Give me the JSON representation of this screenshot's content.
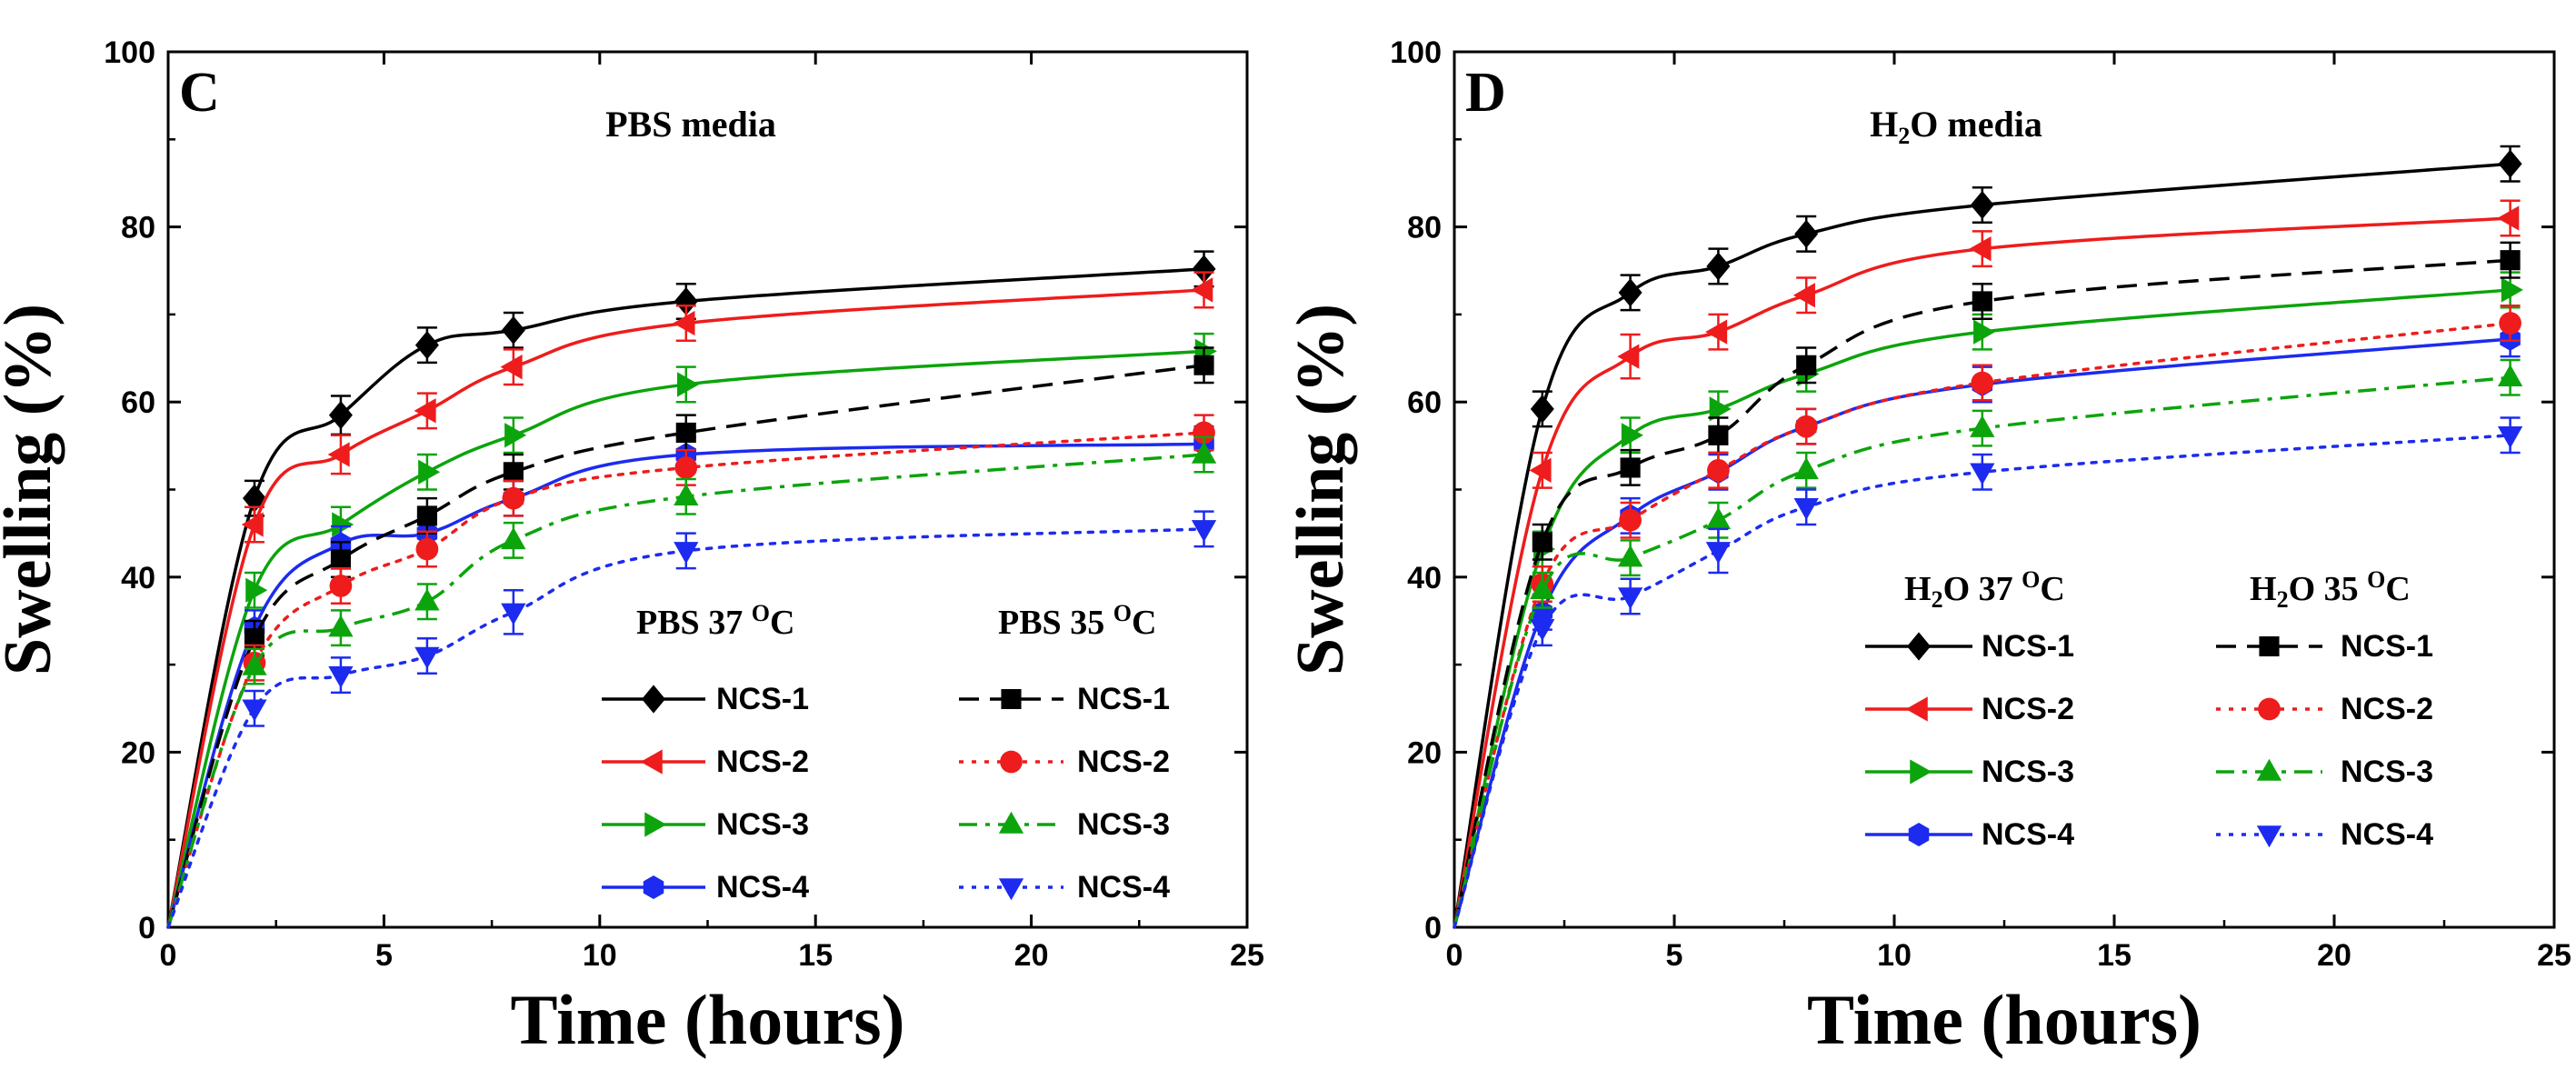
{
  "chart_data": [
    {
      "type": "line",
      "panel_label": "C",
      "title": "PBS media",
      "xlabel": "Time (hours)",
      "ylabel": "Swelling (%)",
      "xlim": [
        0,
        25
      ],
      "ylim": [
        0,
        100
      ],
      "x_ticks": [
        "0",
        "5",
        "10",
        "15",
        "20",
        "25"
      ],
      "y_ticks": [
        "0",
        "20",
        "40",
        "60",
        "80",
        "100"
      ],
      "x": [
        0,
        2,
        4,
        6,
        8,
        12,
        24
      ],
      "legend_groups": [
        {
          "heading": "PBS 37 °C",
          "heading_parts": [
            "PBS 37 ",
            "O",
            "C"
          ]
        },
        {
          "heading": "PBS 35 °C",
          "heading_parts": [
            "PBS 35 ",
            "O",
            "C"
          ]
        }
      ],
      "series": [
        {
          "name": "NCS-1",
          "group": 0,
          "color": "#000000",
          "marker": "diamond",
          "dash": "solid",
          "values": [
            0,
            49,
            58.5,
            66.5,
            68.2,
            71.5,
            75.2
          ],
          "errors": [
            0,
            2,
            2.2,
            2,
            2,
            2,
            2
          ]
        },
        {
          "name": "NCS-2",
          "group": 0,
          "color": "#ee1c1c",
          "marker": "triangle-left",
          "dash": "solid",
          "values": [
            0,
            46,
            54,
            59,
            64,
            69,
            72.8
          ],
          "errors": [
            0,
            2,
            2.2,
            2,
            2,
            2,
            2
          ]
        },
        {
          "name": "NCS-3",
          "group": 0,
          "color": "#0ca40c",
          "marker": "triangle-right",
          "dash": "solid",
          "values": [
            0,
            38.5,
            46,
            52,
            56.2,
            62,
            65.8
          ],
          "errors": [
            0,
            2,
            2,
            2,
            2,
            2,
            2
          ]
        },
        {
          "name": "NCS-4",
          "group": 0,
          "color": "#1c2bef",
          "marker": "hexagon",
          "dash": "solid",
          "values": [
            0,
            34.2,
            43.8,
            45,
            49,
            54,
            55.2
          ],
          "errors": [
            0,
            2,
            2,
            2,
            2,
            2,
            2
          ]
        },
        {
          "name": "NCS-1",
          "group": 1,
          "color": "#000000",
          "marker": "square",
          "dash": "dash",
          "values": [
            0,
            33,
            42,
            47,
            52,
            56.5,
            64.2
          ],
          "errors": [
            0,
            2,
            2,
            2,
            2,
            2,
            2
          ]
        },
        {
          "name": "NCS-2",
          "group": 1,
          "color": "#ee1c1c",
          "marker": "circle",
          "dash": "dot",
          "values": [
            0,
            30.2,
            39,
            43.2,
            49,
            52.5,
            56.5
          ],
          "errors": [
            0,
            2,
            2,
            2,
            2,
            2,
            2
          ]
        },
        {
          "name": "NCS-3",
          "group": 1,
          "color": "#0ca40c",
          "marker": "triangle-up",
          "dash": "dashdot",
          "values": [
            0,
            29.8,
            34.2,
            37.2,
            44.2,
            49.2,
            54
          ],
          "errors": [
            0,
            2,
            2,
            2,
            2,
            2,
            2
          ]
        },
        {
          "name": "NCS-4",
          "group": 1,
          "color": "#1c2bef",
          "marker": "triangle-down",
          "dash": "dot",
          "values": [
            0,
            25,
            28.8,
            31,
            36,
            43,
            45.5
          ],
          "errors": [
            0,
            2,
            2,
            2,
            2.5,
            2,
            2
          ]
        }
      ]
    },
    {
      "type": "line",
      "panel_label": "D",
      "title": "H2O media",
      "title_parts": [
        "H",
        "2",
        "O media"
      ],
      "xlabel": "Time (hours)",
      "ylabel": "Swelling (%)",
      "xlim": [
        0,
        25
      ],
      "ylim": [
        0,
        100
      ],
      "x_ticks": [
        "0",
        "5",
        "10",
        "15",
        "20",
        "25"
      ],
      "y_ticks": [
        "0",
        "20",
        "40",
        "60",
        "80",
        "100"
      ],
      "x": [
        0,
        2,
        4,
        6,
        8,
        12,
        24
      ],
      "legend_groups": [
        {
          "heading": "H2O 37 °C",
          "heading_parts": [
            "H",
            "2",
            "O 37 ",
            "O",
            "C"
          ]
        },
        {
          "heading": "H2O 35 °C",
          "heading_parts": [
            "H",
            "2",
            "O 35 ",
            "O",
            "C"
          ]
        }
      ],
      "series": [
        {
          "name": "NCS-1",
          "group": 0,
          "color": "#000000",
          "marker": "diamond",
          "dash": "solid",
          "values": [
            0,
            59.2,
            72.5,
            75.5,
            79.2,
            82.5,
            87.2
          ],
          "errors": [
            0,
            2,
            2,
            2,
            2,
            2,
            2
          ]
        },
        {
          "name": "NCS-2",
          "group": 0,
          "color": "#ee1c1c",
          "marker": "triangle-left",
          "dash": "solid",
          "values": [
            0,
            52.2,
            65.2,
            68,
            72.2,
            77.5,
            81
          ],
          "errors": [
            0,
            2,
            2.5,
            2,
            2,
            2,
            2
          ]
        },
        {
          "name": "NCS-3",
          "group": 0,
          "color": "#0ca40c",
          "marker": "triangle-right",
          "dash": "solid",
          "values": [
            0,
            43.2,
            56.2,
            59.2,
            63.2,
            68,
            72.8
          ],
          "errors": [
            0,
            2,
            2,
            2,
            2,
            2,
            2
          ]
        },
        {
          "name": "NCS-4",
          "group": 0,
          "color": "#1c2bef",
          "marker": "hexagon",
          "dash": "solid",
          "values": [
            0,
            36,
            47,
            52,
            57.2,
            62,
            67.2
          ],
          "errors": [
            0,
            2,
            2,
            2,
            2,
            2,
            2
          ]
        },
        {
          "name": "NCS-1",
          "group": 1,
          "color": "#000000",
          "marker": "square",
          "dash": "dash",
          "values": [
            0,
            44,
            52.5,
            56.2,
            64.2,
            71.5,
            76.2
          ],
          "errors": [
            0,
            2,
            2,
            2,
            2,
            2,
            2
          ]
        },
        {
          "name": "NCS-2",
          "group": 1,
          "color": "#ee1c1c",
          "marker": "circle",
          "dash": "dot",
          "values": [
            0,
            39.2,
            46.5,
            52.2,
            57.2,
            62.2,
            69
          ],
          "errors": [
            0,
            2,
            2,
            2,
            2,
            2,
            2
          ]
        },
        {
          "name": "NCS-3",
          "group": 1,
          "color": "#0ca40c",
          "marker": "triangle-up",
          "dash": "dashdot",
          "values": [
            0,
            38.5,
            42.2,
            46.5,
            52.2,
            57,
            62.8
          ],
          "errors": [
            0,
            2,
            2,
            2,
            2,
            2,
            2
          ]
        },
        {
          "name": "NCS-4",
          "group": 1,
          "color": "#1c2bef",
          "marker": "triangle-down",
          "dash": "dot",
          "values": [
            0,
            34.2,
            37.8,
            43,
            48,
            52,
            56.2
          ],
          "errors": [
            0,
            2,
            2,
            2.5,
            2,
            2,
            2
          ]
        }
      ]
    }
  ]
}
